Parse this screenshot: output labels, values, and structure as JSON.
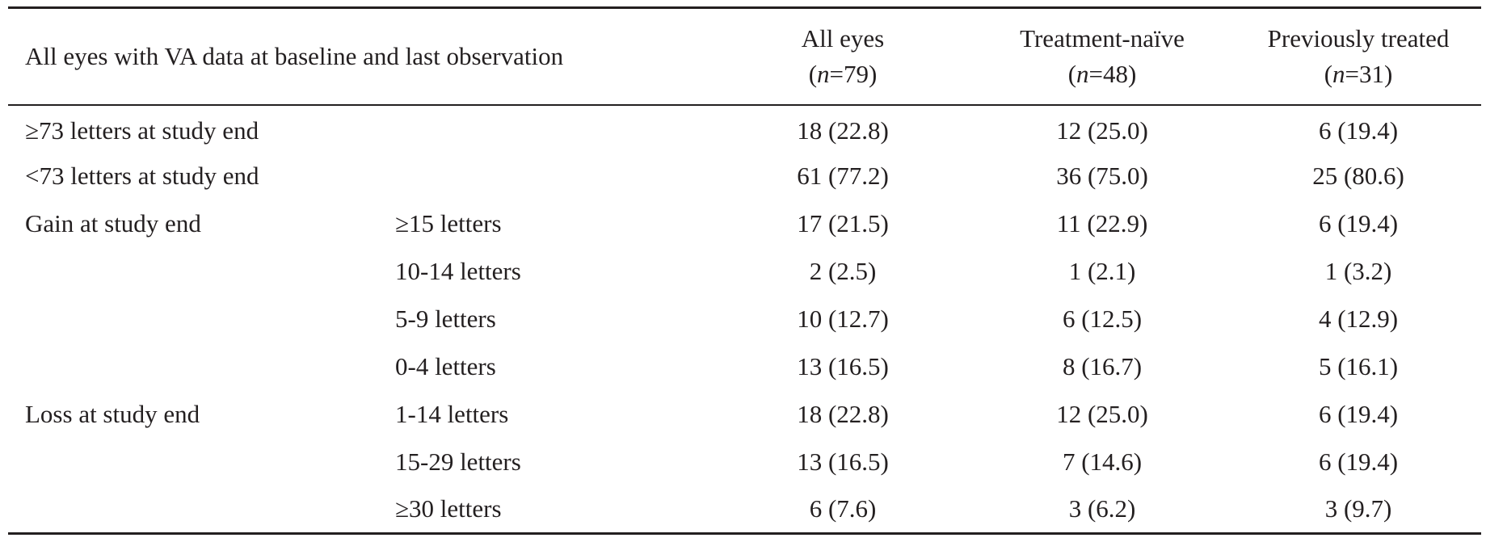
{
  "header": {
    "row_label": "All eyes with VA data at baseline and last observation",
    "columns": [
      {
        "title": "All eyes",
        "n_prefix": "(",
        "n_var": "n",
        "n_value": "=79)"
      },
      {
        "title": "Treatment-naïve",
        "n_prefix": "(",
        "n_var": "n",
        "n_value": "=48)"
      },
      {
        "title": "Previously treated",
        "n_prefix": "(",
        "n_var": "n",
        "n_value": "=31)"
      }
    ]
  },
  "rows": [
    {
      "label": "≥73 letters at study end",
      "sub": "",
      "values": [
        "18 (22.8)",
        "12 (25.0)",
        "6 (19.4)"
      ]
    },
    {
      "label": "<73 letters at study end",
      "sub": "",
      "values": [
        "61 (77.2)",
        "36 (75.0)",
        "25 (80.6)"
      ]
    },
    {
      "label": "Gain at study end",
      "sub": "≥15 letters",
      "values": [
        "17 (21.5)",
        "11 (22.9)",
        "6 (19.4)"
      ]
    },
    {
      "label": "",
      "sub": "10-14 letters",
      "values": [
        "2 (2.5)",
        "1 (2.1)",
        "1 (3.2)"
      ]
    },
    {
      "label": "",
      "sub": "5-9 letters",
      "values": [
        "10 (12.7)",
        "6 (12.5)",
        "4 (12.9)"
      ]
    },
    {
      "label": "",
      "sub": "0-4 letters",
      "values": [
        "13 (16.5)",
        "8 (16.7)",
        "5 (16.1)"
      ]
    },
    {
      "label": "Loss at study end",
      "sub": "1-14 letters",
      "values": [
        "18 (22.8)",
        "12 (25.0)",
        "6 (19.4)"
      ]
    },
    {
      "label": "",
      "sub": "15-29 letters",
      "values": [
        "13 (16.5)",
        "7 (14.6)",
        "6 (19.4)"
      ]
    },
    {
      "label": "",
      "sub": "≥30 letters",
      "values": [
        "6 (7.6)",
        "3 (6.2)",
        "3 (9.7)"
      ]
    }
  ]
}
